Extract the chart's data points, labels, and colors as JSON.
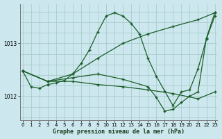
{
  "title": "Graphe pression niveau de la mer (hPa)",
  "background_color": "#cce8ee",
  "grid_color": "#aacccc",
  "line_color": "#1a5c28",
  "xlim": [
    -0.3,
    23.3
  ],
  "ylim": [
    1011.55,
    1013.75
  ],
  "yticks": [
    1012,
    1013
  ],
  "xticks": [
    0,
    1,
    2,
    3,
    4,
    5,
    6,
    7,
    8,
    9,
    10,
    11,
    12,
    13,
    14,
    15,
    16,
    17,
    18,
    19,
    20,
    21,
    22,
    23
  ],
  "series": [
    {
      "x": [
        0,
        1,
        2,
        3,
        4,
        5,
        6,
        7,
        8,
        9,
        10,
        11,
        12,
        13,
        14,
        15,
        16,
        17,
        18,
        19,
        20,
        21,
        22,
        23
      ],
      "y": [
        1012.48,
        1012.18,
        1012.15,
        1012.22,
        1012.25,
        1012.3,
        1012.42,
        1012.62,
        1012.88,
        1013.22,
        1013.52,
        1013.58,
        1013.52,
        1013.38,
        1013.18,
        1012.72,
        1012.38,
        1012.1,
        1011.82,
        1012.08,
        1012.12,
        1012.52,
        1013.08,
        1013.52
      ]
    },
    {
      "x": [
        0,
        3,
        6,
        9,
        12,
        15,
        18,
        21,
        23
      ],
      "y": [
        1012.48,
        1012.28,
        1012.42,
        1012.72,
        1013.0,
        1013.18,
        1013.32,
        1013.45,
        1013.58
      ]
    },
    {
      "x": [
        0,
        3,
        6,
        9,
        12,
        15,
        18,
        21,
        23
      ],
      "y": [
        1012.48,
        1012.28,
        1012.28,
        1012.22,
        1012.18,
        1012.12,
        1012.05,
        1011.95,
        1012.08
      ]
    },
    {
      "x": [
        0,
        3,
        6,
        9,
        12,
        15,
        16,
        17,
        18,
        19,
        20,
        21,
        22,
        23
      ],
      "y": [
        1012.48,
        1012.28,
        1012.35,
        1012.42,
        1012.32,
        1012.18,
        1011.98,
        1011.72,
        1011.75,
        1011.88,
        1012.0,
        1012.08,
        1013.1,
        1013.58
      ]
    }
  ]
}
